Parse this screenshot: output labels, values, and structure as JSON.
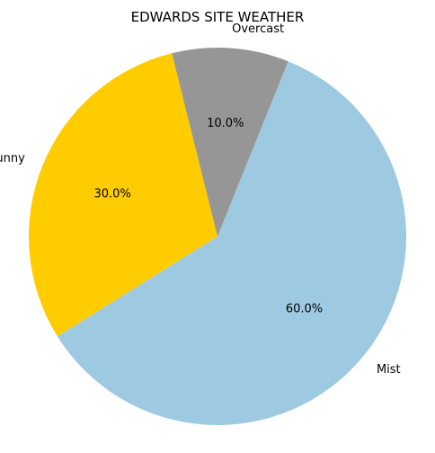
{
  "chart_data": {
    "type": "pie",
    "title": "EDWARDS SITE WEATHER",
    "slices": [
      {
        "label": "Sunny",
        "value": 30,
        "pct_label": "30.0%",
        "color": "#FFCC00"
      },
      {
        "label": "Mist",
        "value": 60,
        "pct_label": "60.0%",
        "color": "#9ECAE1"
      },
      {
        "label": "Overcast",
        "value": 10,
        "pct_label": "10.0%",
        "color": "#969696"
      }
    ],
    "start_angle_deg": 104,
    "direction": "counterclockwise"
  }
}
